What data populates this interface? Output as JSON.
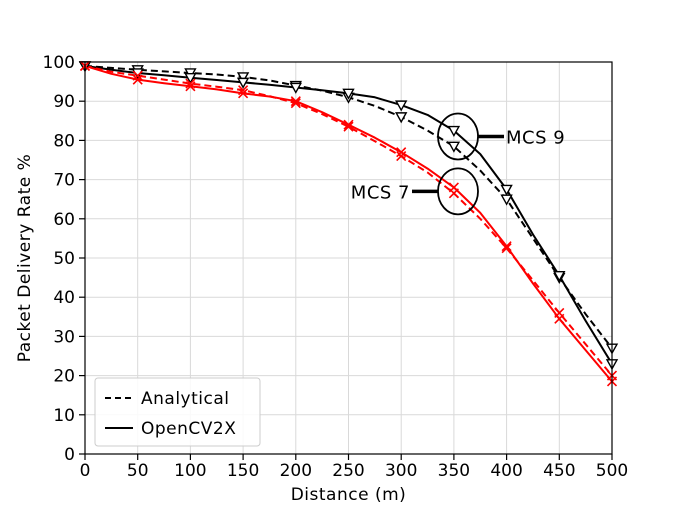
{
  "chart_data": {
    "type": "line",
    "title": "",
    "xlabel": "Distance (m)",
    "ylabel": "Packet Delivery Rate %",
    "xlim": [
      0,
      500
    ],
    "ylim": [
      0,
      100
    ],
    "xticks": [
      0,
      50,
      100,
      150,
      200,
      250,
      300,
      350,
      400,
      450,
      500
    ],
    "yticks": [
      0,
      10,
      20,
      30,
      40,
      50,
      60,
      70,
      80,
      90,
      100
    ],
    "grid": true,
    "legend": {
      "placement": "bottom-left",
      "entries": [
        {
          "label": "Analytical",
          "style": "dashed"
        },
        {
          "label": "OpenCV2X",
          "style": "solid"
        }
      ]
    },
    "annotations": [
      {
        "text": "MCS 9",
        "x": 352,
        "y": 81
      },
      {
        "text": "MCS 7",
        "x": 352,
        "y": 67
      }
    ],
    "series": [
      {
        "name": "MCS 9 Analytical",
        "color": "#000000",
        "style": "dashed",
        "marker": "triangle-down",
        "x": [
          0,
          50,
          100,
          150,
          200,
          250,
          300,
          350,
          400,
          450,
          500
        ],
        "y": [
          99,
          98,
          97.2,
          96.2,
          94,
          91,
          86,
          78.5,
          65,
          45,
          27
        ],
        "curve_x": [
          0,
          25,
          50,
          75,
          100,
          125,
          150,
          175,
          200,
          225,
          250,
          275,
          300,
          325,
          350,
          375,
          400,
          425,
          450,
          475,
          500
        ],
        "curve_y": [
          99,
          98.5,
          98,
          97.6,
          97.2,
          96.8,
          96.2,
          95.3,
          94,
          92.7,
          91,
          88.8,
          86,
          82.5,
          78.5,
          72.3,
          65,
          55,
          45,
          35.7,
          27
        ]
      },
      {
        "name": "MCS 9 OpenCV2X",
        "color": "#000000",
        "style": "solid",
        "marker": "triangle-down",
        "x": [
          0,
          50,
          100,
          150,
          200,
          250,
          300,
          350,
          400,
          450,
          500
        ],
        "y": [
          99,
          97.2,
          96,
          94.8,
          93.5,
          92,
          89,
          82.5,
          67.5,
          45.5,
          23
        ],
        "curve_x": [
          0,
          25,
          50,
          75,
          100,
          125,
          150,
          175,
          200,
          225,
          250,
          275,
          300,
          325,
          350,
          375,
          400,
          425,
          450,
          475,
          500
        ],
        "curve_y": [
          99,
          98,
          97.2,
          96.6,
          96,
          95.4,
          94.8,
          94.2,
          93.5,
          92.8,
          92,
          91,
          89,
          86.5,
          82.5,
          76.5,
          67.5,
          56,
          45.5,
          34,
          23
        ]
      },
      {
        "name": "MCS 7 Analytical",
        "color": "#ff0000",
        "style": "dashed",
        "marker": "x",
        "x": [
          0,
          50,
          100,
          150,
          200,
          250,
          300,
          350,
          400,
          450,
          500
        ],
        "y": [
          99,
          96.5,
          94.5,
          92.8,
          89.5,
          83.5,
          76,
          66.5,
          52.5,
          36,
          20
        ],
        "curve_x": [
          0,
          25,
          50,
          75,
          100,
          125,
          150,
          175,
          200,
          225,
          250,
          275,
          300,
          325,
          350,
          375,
          400,
          425,
          450,
          475,
          500
        ],
        "curve_y": [
          99,
          97.5,
          96.5,
          95.5,
          94.5,
          93.7,
          92.8,
          91.3,
          89.5,
          86.7,
          83.5,
          79.8,
          76,
          71.8,
          66.5,
          60,
          52.5,
          44.3,
          36,
          28,
          20
        ]
      },
      {
        "name": "MCS 7 OpenCV2X",
        "color": "#ff0000",
        "style": "solid",
        "marker": "x",
        "x": [
          0,
          50,
          100,
          150,
          200,
          250,
          300,
          350,
          400,
          450,
          500
        ],
        "y": [
          99,
          95.5,
          93.8,
          92,
          90,
          84,
          77,
          68,
          53,
          34.5,
          18.5
        ],
        "curve_x": [
          0,
          25,
          50,
          75,
          100,
          125,
          150,
          175,
          200,
          225,
          250,
          275,
          300,
          325,
          350,
          375,
          400,
          425,
          450,
          475,
          500
        ],
        "curve_y": [
          99,
          97,
          95.5,
          94.6,
          93.8,
          93,
          92,
          91.2,
          90,
          87.2,
          84,
          80.7,
          77,
          72.8,
          68,
          61.5,
          53,
          43.5,
          34.5,
          26.5,
          18.5
        ]
      }
    ]
  }
}
